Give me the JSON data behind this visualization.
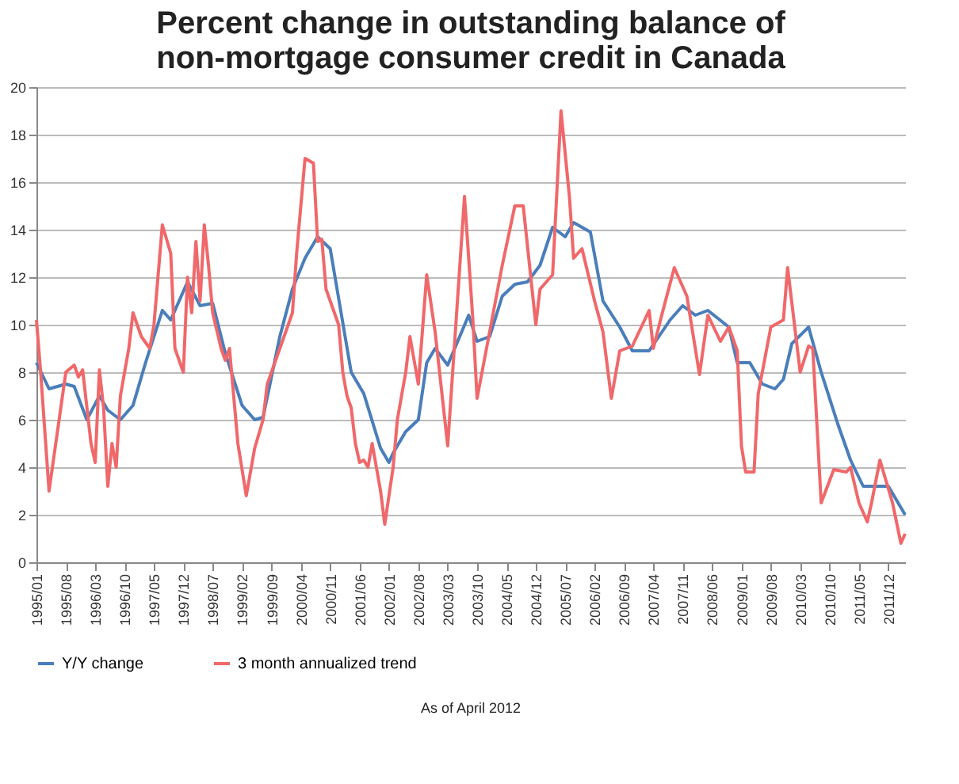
{
  "chart_data": {
    "type": "line",
    "title": [
      "Percent change in outstanding balance of",
      "non-mortgage consumer credit in Canada"
    ],
    "xlim": [
      "1995-01",
      "2012-04"
    ],
    "ylim": [
      0,
      20
    ],
    "yticks": [
      0,
      2,
      4,
      6,
      8,
      10,
      12,
      14,
      16,
      18,
      20
    ],
    "xticks": [
      {
        "value": "1995-01",
        "label": "1995/01"
      },
      {
        "value": "1995-08",
        "label": "1995/08"
      },
      {
        "value": "1996-03",
        "label": "1996/03"
      },
      {
        "value": "1996-10",
        "label": "1996/10"
      },
      {
        "value": "1997-05",
        "label": "1997/05"
      },
      {
        "value": "1997-12",
        "label": "1997/12"
      },
      {
        "value": "1998-07",
        "label": "1998/07"
      },
      {
        "value": "1999-02",
        "label": "1999/02"
      },
      {
        "value": "1999-09",
        "label": "1999/09"
      },
      {
        "value": "2000-04",
        "label": "2000/04"
      },
      {
        "value": "2000-11",
        "label": "2000/11"
      },
      {
        "value": "2001-06",
        "label": "2001/06"
      },
      {
        "value": "2002-01",
        "label": "2002/01"
      },
      {
        "value": "2002-08",
        "label": "2002/08"
      },
      {
        "value": "2003-03",
        "label": "2003/03"
      },
      {
        "value": "2003-10",
        "label": "2003/10"
      },
      {
        "value": "2004-05",
        "label": "2004/05"
      },
      {
        "value": "2004-12",
        "label": "2004/12"
      },
      {
        "value": "2005-07",
        "label": "2005/07"
      },
      {
        "value": "2006-02",
        "label": "2006/02"
      },
      {
        "value": "2006-09",
        "label": "2006/09"
      },
      {
        "value": "2007-04",
        "label": "2007/04"
      },
      {
        "value": "2007-11",
        "label": "2007/11"
      },
      {
        "value": "2008-06",
        "label": "2008/06"
      },
      {
        "value": "2009-01",
        "label": "2009/01"
      },
      {
        "value": "2009-08",
        "label": "2009/08"
      },
      {
        "value": "2010-03",
        "label": "2010/03"
      },
      {
        "value": "2010-10",
        "label": "2010/10"
      },
      {
        "value": "2011-05",
        "label": "2011/05"
      },
      {
        "value": "2011-12",
        "label": "2011/12"
      }
    ],
    "grid": "y",
    "legend": "bottom",
    "marker": "none",
    "line_style": "solid",
    "annotations": [
      "As of April 2012"
    ],
    "series": [
      {
        "name": "Y/Y change",
        "color": "#4a7ebb",
        "x": [
          "1995-01",
          "1995-04",
          "1995-08",
          "1995-10",
          "1996-01",
          "1996-04",
          "1996-06",
          "1996-09",
          "1996-12",
          "1997-03",
          "1997-07",
          "1997-09",
          "1998-01",
          "1998-04",
          "1998-07",
          "1998-10",
          "1999-02",
          "1999-05",
          "1999-07",
          "1999-11",
          "2000-02",
          "2000-05",
          "2000-08",
          "2000-11",
          "2001-04",
          "2001-07",
          "2001-11",
          "2002-01",
          "2002-02",
          "2002-05",
          "2002-08",
          "2002-10",
          "2002-12",
          "2003-03",
          "2003-08",
          "2003-10",
          "2004-01",
          "2004-04",
          "2004-07",
          "2004-10",
          "2005-01",
          "2005-04",
          "2005-07",
          "2005-09",
          "2006-01",
          "2006-04",
          "2006-08",
          "2006-11",
          "2007-03",
          "2007-08",
          "2007-11",
          "2008-02",
          "2008-05",
          "2008-10",
          "2008-12",
          "2009-03",
          "2009-06",
          "2009-09",
          "2009-11",
          "2010-01",
          "2010-05",
          "2010-08",
          "2010-12",
          "2011-03",
          "2011-06",
          "2011-12",
          "2012-04"
        ],
        "values": [
          8.4,
          7.3,
          7.5,
          7.4,
          6.0,
          7.0,
          6.4,
          6.0,
          6.6,
          8.4,
          10.6,
          10.2,
          11.8,
          10.8,
          10.9,
          8.8,
          6.6,
          6.0,
          6.1,
          9.5,
          11.5,
          12.8,
          13.7,
          13.2,
          8.0,
          7.1,
          4.8,
          4.2,
          4.6,
          5.5,
          6.0,
          8.4,
          9.0,
          8.3,
          10.4,
          9.3,
          9.5,
          11.2,
          11.7,
          11.8,
          12.5,
          14.1,
          13.7,
          14.3,
          13.9,
          11.0,
          9.9,
          8.9,
          8.9,
          10.2,
          10.8,
          10.4,
          10.6,
          9.9,
          8.4,
          8.4,
          7.5,
          7.3,
          7.7,
          9.2,
          9.9,
          8.0,
          5.8,
          4.3,
          3.2,
          3.2,
          2.0
        ]
      },
      {
        "name": "3 month annualized trend",
        "color": "#f0686a",
        "x": [
          "1995-01",
          "1995-02",
          "1995-04",
          "1995-06",
          "1995-08",
          "1995-10",
          "1995-11",
          "1995-12",
          "1996-02",
          "1996-03",
          "1996-04",
          "1996-05",
          "1996-06",
          "1996-07",
          "1996-08",
          "1996-09",
          "1996-11",
          "1996-12",
          "1997-02",
          "1997-04",
          "1997-05",
          "1997-07",
          "1997-09",
          "1997-10",
          "1997-12",
          "1998-01",
          "1998-02",
          "1998-03",
          "1998-04",
          "1998-05",
          "1998-06",
          "1998-07",
          "1998-09",
          "1998-10",
          "1998-11",
          "1999-01",
          "1999-03",
          "1999-05",
          "1999-07",
          "1999-08",
          "1999-10",
          "1999-12",
          "2000-02",
          "2000-03",
          "2000-05",
          "2000-07",
          "2000-08",
          "2000-09",
          "2000-10",
          "2000-11",
          "2001-01",
          "2001-02",
          "2001-03",
          "2001-04",
          "2001-05",
          "2001-06",
          "2001-07",
          "2001-08",
          "2001-09",
          "2001-10",
          "2001-11",
          "2001-12",
          "2002-02",
          "2002-03",
          "2002-05",
          "2002-06",
          "2002-07",
          "2002-08",
          "2002-10",
          "2002-12",
          "2003-03",
          "2003-07",
          "2003-09",
          "2003-10",
          "2004-01",
          "2004-04",
          "2004-07",
          "2004-09",
          "2004-12",
          "2005-01",
          "2005-04",
          "2005-06",
          "2005-08",
          "2005-09",
          "2005-11",
          "2006-02",
          "2006-04",
          "2006-06",
          "2006-08",
          "2006-11",
          "2007-03",
          "2007-04",
          "2007-06",
          "2007-09",
          "2007-12",
          "2008-03",
          "2008-05",
          "2008-08",
          "2008-10",
          "2008-12",
          "2009-01",
          "2009-02",
          "2009-04",
          "2009-05",
          "2009-08",
          "2009-11",
          "2009-12",
          "2010-03",
          "2010-05",
          "2010-06",
          "2010-08",
          "2010-11",
          "2011-02",
          "2011-03",
          "2011-05",
          "2011-07",
          "2011-08",
          "2011-10",
          "2012-01",
          "2012-03",
          "2012-04"
        ],
        "values": [
          10.2,
          8.0,
          3.0,
          5.5,
          8.0,
          8.3,
          7.8,
          8.1,
          5.0,
          4.2,
          8.1,
          6.5,
          3.2,
          5.0,
          4.0,
          7.0,
          9.0,
          10.5,
          9.5,
          9.0,
          10.0,
          14.2,
          13.0,
          9.0,
          8.0,
          12.0,
          10.5,
          13.5,
          11.0,
          14.2,
          12.5,
          10.5,
          9.0,
          8.5,
          9.0,
          5.0,
          2.8,
          4.8,
          6.0,
          7.5,
          8.5,
          9.5,
          10.5,
          13.0,
          17.0,
          16.8,
          13.5,
          13.6,
          11.5,
          11.0,
          10.0,
          8.0,
          7.0,
          6.5,
          5.0,
          4.2,
          4.3,
          4.0,
          5.0,
          4.0,
          3.0,
          1.6,
          4.0,
          6.0,
          8.0,
          9.5,
          8.5,
          7.5,
          12.1,
          9.7,
          4.9,
          15.4,
          10.2,
          6.9,
          9.7,
          12.5,
          15.0,
          15.0,
          10.0,
          11.5,
          12.1,
          19.0,
          15.4,
          12.8,
          13.2,
          11.0,
          9.7,
          6.9,
          8.9,
          9.1,
          10.6,
          9.0,
          10.4,
          12.4,
          11.2,
          7.9,
          10.4,
          9.3,
          9.9,
          8.9,
          4.9,
          3.8,
          3.8,
          7.1,
          9.9,
          10.2,
          12.4,
          8.0,
          9.1,
          9.0,
          2.5,
          3.9,
          3.8,
          4.0,
          2.5,
          1.7,
          2.5,
          4.3,
          2.5,
          0.8,
          1.2
        ]
      }
    ]
  }
}
